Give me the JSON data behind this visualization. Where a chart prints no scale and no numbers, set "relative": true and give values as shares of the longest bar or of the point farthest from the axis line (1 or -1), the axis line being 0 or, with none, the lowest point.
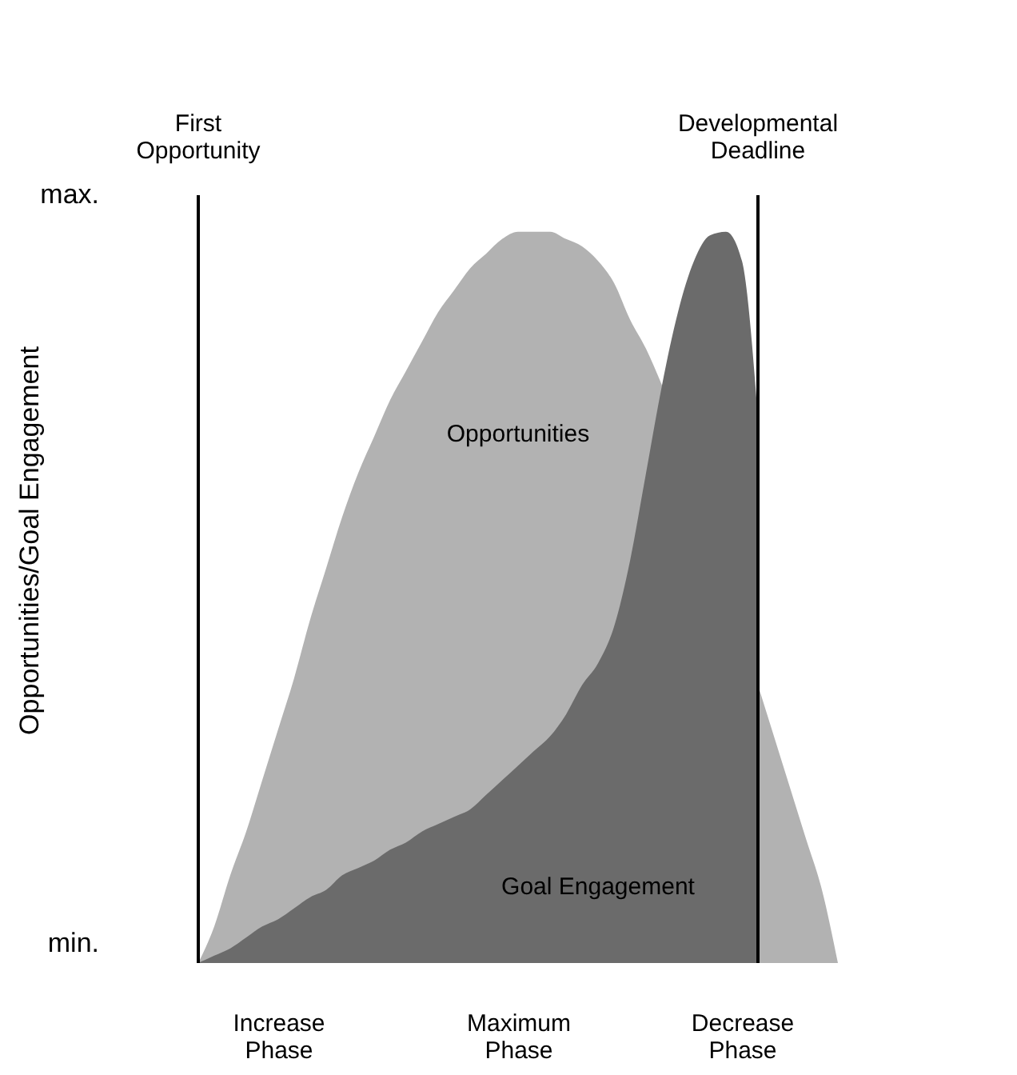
{
  "chart_data": {
    "type": "area",
    "ylabel": "Opportunities/Goal Engagement",
    "relative": true,
    "categories": [
      null,
      null,
      null,
      null,
      null,
      null,
      null,
      null,
      null,
      null,
      "Increase Phase",
      null,
      null,
      null,
      null,
      null,
      null,
      null,
      null,
      null,
      null,
      null,
      null,
      null,
      null,
      "Maximum Phase",
      null,
      null,
      null,
      null,
      null,
      null,
      null,
      null,
      null,
      null,
      null,
      null,
      null,
      "Decrease Phase",
      null,
      null,
      null,
      null,
      null,
      null,
      null,
      null,
      null,
      null,
      null
    ],
    "grid": false,
    "series": [
      {
        "color": "#b2b2b2",
        "values": [
          null,
          null,
          null,
          null,
          null,
          0,
          0.05,
          0.12,
          0.18,
          0.25,
          0.32,
          0.39,
          0.47,
          0.54,
          0.61,
          0.67,
          0.72,
          0.77,
          0.81,
          0.85,
          0.89,
          0.92,
          0.95,
          0.97,
          0.99,
          1.0,
          1.0,
          1.0,
          0.99,
          0.98,
          0.96,
          0.93,
          0.88,
          0.84,
          0.79,
          null,
          null,
          null,
          null,
          null,
          0.38,
          0.31,
          0.24,
          0.17,
          0.1,
          0,
          null,
          null,
          null,
          null,
          null
        ]
      },
      {
        "color": "#6b6b6b",
        "values": [
          null,
          null,
          null,
          null,
          null,
          0,
          0.01,
          0.02,
          0.035,
          0.05,
          0.06,
          0.075,
          0.09,
          0.1,
          0.12,
          0.13,
          0.14,
          0.155,
          0.165,
          0.18,
          0.19,
          0.2,
          0.21,
          0.23,
          0.25,
          0.27,
          0.29,
          0.31,
          0.34,
          0.38,
          0.41,
          0.46,
          0.55,
          0.67,
          0.79,
          0.89,
          0.96,
          0.995,
          1.0,
          0.96,
          0.75,
          null,
          null,
          null,
          null,
          null,
          null,
          null,
          null,
          null,
          null
        ]
      }
    ],
    "annotations": [
      "First Opportunity",
      "Developmental Deadline",
      "max.",
      "min.",
      "Opportunities",
      "Goal Engagement"
    ]
  }
}
